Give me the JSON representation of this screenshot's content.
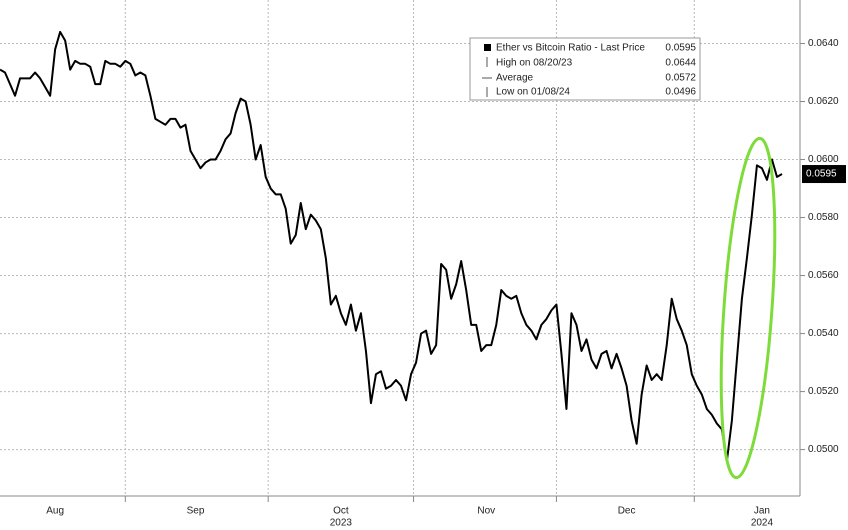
{
  "chart_data": {
    "type": "line",
    "categories": [
      null,
      null,
      null,
      null,
      null,
      null,
      null,
      null,
      null,
      null,
      null,
      "Aug",
      null,
      null,
      null,
      null,
      null,
      null,
      null,
      null,
      null,
      null,
      null,
      null,
      null,
      null,
      null,
      null,
      null,
      null,
      null,
      null,
      null,
      null,
      null,
      null,
      null,
      null,
      null,
      "Sep",
      null,
      null,
      null,
      null,
      null,
      null,
      null,
      null,
      null,
      null,
      null,
      null,
      null,
      null,
      null,
      null,
      null,
      null,
      null,
      null,
      null,
      null,
      null,
      null,
      null,
      null,
      null,
      null,
      "Oct",
      null,
      null,
      null,
      null,
      null,
      null,
      null,
      null,
      null,
      null,
      null,
      null,
      null,
      null,
      null,
      null,
      null,
      null,
      null,
      null,
      null,
      null,
      null,
      null,
      null,
      null,
      null,
      null,
      "Nov",
      null,
      null,
      null,
      null,
      null,
      null,
      null,
      null,
      null,
      null,
      null,
      null,
      null,
      null,
      null,
      null,
      null,
      null,
      null,
      null,
      null,
      null,
      null,
      null,
      null,
      null,
      null,
      "Dec",
      null,
      null,
      null,
      null,
      null,
      null,
      null,
      null,
      null,
      null,
      null,
      null,
      null,
      null,
      null,
      null,
      null,
      null,
      null,
      null,
      null,
      null,
      null,
      null,
      null,
      null,
      "Jan",
      null,
      null,
      null,
      null
    ],
    "x_groups": [
      {
        "label": "2023",
        "from": "Aug",
        "to": "Dec"
      },
      {
        "label": "2024",
        "from": "Jan",
        "to": "Jan"
      }
    ],
    "series": [
      {
        "name": "Ether vs Bitcoin Ratio - Last Price",
        "color": "#000000",
        "values": [
          0.0631,
          0.063,
          0.0626,
          0.0622,
          0.0628,
          0.0628,
          0.0628,
          0.063,
          0.0628,
          0.0625,
          0.0622,
          0.0638,
          0.0644,
          0.0641,
          0.0631,
          0.0634,
          0.0633,
          0.0633,
          0.0632,
          0.0626,
          0.0626,
          0.0634,
          0.0633,
          0.0633,
          0.0632,
          0.0634,
          0.0633,
          0.0629,
          0.063,
          0.0629,
          0.0622,
          0.0614,
          0.0613,
          0.0612,
          0.0614,
          0.0614,
          0.0611,
          0.0612,
          0.0603,
          0.06,
          0.0597,
          0.0599,
          0.06,
          0.06,
          0.0603,
          0.0607,
          0.0609,
          0.0616,
          0.0621,
          0.062,
          0.0612,
          0.06,
          0.0605,
          0.0594,
          0.059,
          0.0588,
          0.0588,
          0.0583,
          0.0571,
          0.0574,
          0.0585,
          0.0576,
          0.0581,
          0.0579,
          0.0576,
          0.0566,
          0.055,
          0.0553,
          0.0547,
          0.0543,
          0.055,
          0.0541,
          0.0547,
          0.0534,
          0.0516,
          0.0526,
          0.0527,
          0.0521,
          0.0522,
          0.0524,
          0.0522,
          0.0517,
          0.0526,
          0.053,
          0.054,
          0.0541,
          0.0533,
          0.0536,
          0.0564,
          0.0562,
          0.0552,
          0.0557,
          0.0565,
          0.0555,
          0.0543,
          0.0543,
          0.0534,
          0.0536,
          0.0536,
          0.0543,
          0.0555,
          0.0553,
          0.0552,
          0.0553,
          0.0547,
          0.0543,
          0.0541,
          0.0538,
          0.0543,
          0.0545,
          0.0548,
          0.055,
          0.0533,
          0.0514,
          0.0547,
          0.0543,
          0.0534,
          0.0538,
          0.0531,
          0.0528,
          0.0533,
          0.0534,
          0.0528,
          0.0533,
          0.0528,
          0.0522,
          0.051,
          0.0502,
          0.0519,
          0.0529,
          0.0524,
          0.0526,
          0.0524,
          0.0536,
          0.0552,
          0.0545,
          0.0541,
          0.0536,
          0.0526,
          0.0522,
          0.0519,
          0.0514,
          0.0512,
          0.0509,
          0.0507,
          0.0496,
          0.051,
          0.0531,
          0.0552,
          0.0566,
          0.0581,
          0.0598,
          0.0597,
          0.0593,
          0.06,
          0.0594,
          0.0595
        ]
      }
    ],
    "stats": [
      {
        "label": "High on 08/20/23",
        "value": 0.0644
      },
      {
        "label": "Average",
        "value": 0.0572
      },
      {
        "label": "Low on 01/08/24",
        "value": 0.0496
      }
    ],
    "ylim": [
      0.0484,
      0.0655
    ],
    "yticks": [
      {
        "value": 0.05,
        "label": "0.0500"
      },
      {
        "value": 0.052,
        "label": "0.0520"
      },
      {
        "value": 0.054,
        "label": "0.0540"
      },
      {
        "value": 0.056,
        "label": "0.0560"
      },
      {
        "value": 0.058,
        "label": "0.0580"
      },
      {
        "value": 0.06,
        "label": "0.0600"
      },
      {
        "value": 0.062,
        "label": "0.0620"
      },
      {
        "value": 0.064,
        "label": "0.0640"
      }
    ],
    "grid": true
  }
}
